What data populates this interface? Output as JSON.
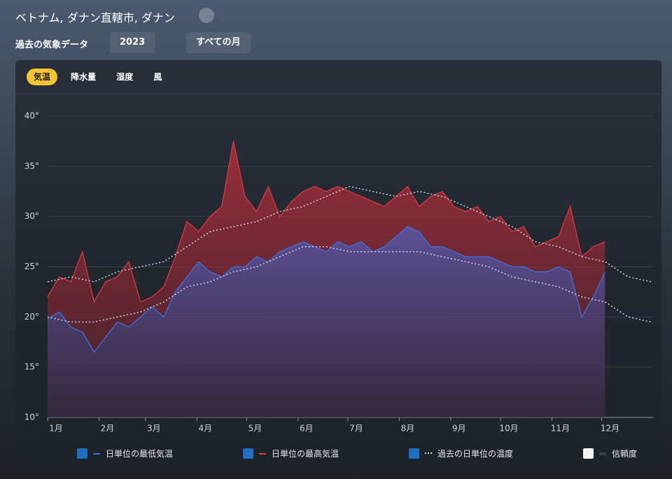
{
  "header": {
    "location": "ベトナム, ダナン直轄市, ダナン",
    "section": "過去の気象データ",
    "year": "2023",
    "months": "すべての月",
    "tabs": [
      "気温",
      "降水量",
      "湿度",
      "風"
    ]
  },
  "chart_data": {
    "type": "line",
    "xlim": [
      0,
      365
    ],
    "xticks": [
      {
        "value": 0,
        "label": "1月"
      },
      {
        "value": 31,
        "label": "2月"
      },
      {
        "value": 59,
        "label": "3月"
      },
      {
        "value": 90,
        "label": "4月"
      },
      {
        "value": 120,
        "label": "5月"
      },
      {
        "value": 151,
        "label": "6月"
      },
      {
        "value": 181,
        "label": "7月"
      },
      {
        "value": 212,
        "label": "8月"
      },
      {
        "value": 243,
        "label": "9月"
      },
      {
        "value": 273,
        "label": "10月"
      },
      {
        "value": 304,
        "label": "11月"
      },
      {
        "value": 334,
        "label": "12月"
      }
    ],
    "ylim": [
      10,
      40
    ],
    "yticks": [
      {
        "value": 10,
        "label": "10°"
      },
      {
        "value": 15,
        "label": "15°"
      },
      {
        "value": 20,
        "label": "20°"
      },
      {
        "value": 25,
        "label": "25°"
      },
      {
        "value": 30,
        "label": "30°"
      },
      {
        "value": 35,
        "label": "35°"
      },
      {
        "value": 40,
        "label": "40°"
      }
    ],
    "grid": true,
    "series": [
      {
        "name": "日単位の最低気温",
        "color": "#3f6fe0",
        "x": [
          0,
          7,
          14,
          21,
          28,
          35,
          42,
          49,
          56,
          63,
          70,
          77,
          84,
          91,
          98,
          105,
          112,
          119,
          126,
          133,
          140,
          147,
          154,
          161,
          168,
          175,
          182,
          189,
          196,
          203,
          210,
          217,
          224,
          231,
          238,
          245,
          252,
          259,
          266,
          273,
          280,
          287,
          294,
          301,
          308,
          315,
          322,
          329,
          336
        ],
        "values": [
          19.8,
          20.5,
          19,
          18.5,
          16.5,
          18,
          19.5,
          19,
          20,
          21,
          20,
          22.5,
          24,
          25.5,
          24.5,
          24,
          25,
          25,
          26,
          25.5,
          26.5,
          27,
          27.5,
          27,
          26.5,
          27.5,
          27,
          27.5,
          26.5,
          27,
          28,
          29,
          28.5,
          27,
          27,
          26.5,
          26,
          26,
          26,
          25.5,
          25,
          25,
          24.5,
          24.5,
          25,
          24.5,
          20,
          22,
          24.5
        ]
      },
      {
        "name": "日単位の最高気温",
        "color": "#d9393f",
        "x": [
          0,
          7,
          14,
          21,
          28,
          35,
          42,
          49,
          56,
          63,
          70,
          77,
          84,
          91,
          98,
          105,
          112,
          119,
          126,
          133,
          140,
          147,
          154,
          161,
          168,
          175,
          182,
          189,
          196,
          203,
          210,
          217,
          224,
          231,
          238,
          245,
          252,
          259,
          266,
          273,
          280,
          287,
          294,
          301,
          308,
          315,
          322,
          329,
          336
        ],
        "values": [
          22,
          24,
          23.5,
          26.5,
          21.5,
          23.5,
          24,
          25.5,
          21.5,
          22,
          23,
          26,
          29.5,
          28.5,
          30,
          31,
          37.5,
          32,
          30.5,
          33,
          30,
          31.5,
          32.5,
          33,
          32.5,
          33,
          32.5,
          32,
          31.5,
          31,
          32,
          33,
          31,
          32,
          32.5,
          31,
          30.5,
          31,
          29.5,
          30,
          28.5,
          29,
          27,
          27.5,
          28,
          31,
          26,
          27,
          27.5
        ]
      },
      {
        "name": "過去の日単位の温度",
        "color": "#c9d3e8",
        "x": [
          0,
          14,
          28,
          42,
          56,
          70,
          84,
          98,
          112,
          126,
          140,
          154,
          168,
          182,
          196,
          210,
          224,
          238,
          252,
          266,
          280,
          294,
          308,
          322,
          336,
          350,
          364
        ],
        "values": [
          23.5,
          24,
          23.5,
          24.5,
          25,
          25.5,
          27,
          28.5,
          29,
          29.5,
          30.5,
          31,
          32,
          33,
          32.5,
          32,
          32.5,
          32,
          31,
          30,
          29,
          27.5,
          27,
          26,
          25.5,
          24,
          23.5
        ],
        "low_values": [
          20,
          19.5,
          19.5,
          20,
          20.5,
          21.5,
          23,
          23.5,
          24.5,
          25,
          26,
          27,
          27,
          26.5,
          26.5,
          26.5,
          26.5,
          26,
          25.5,
          25,
          24,
          23.5,
          23,
          22,
          21.5,
          20,
          19.5
        ]
      },
      {
        "name": "信頼度",
        "color": "#3a3f47"
      }
    ]
  }
}
